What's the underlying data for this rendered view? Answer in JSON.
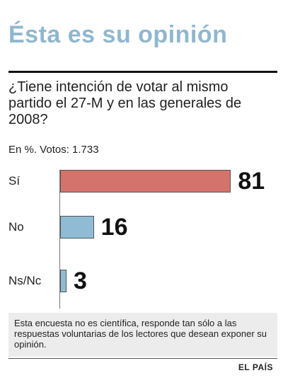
{
  "title": "Ésta es su opinión",
  "question": "¿Tiene intención de votar al mismo partido el 27-M y en las generales de 2008?",
  "subtitle": "En %. Votos: 1.733",
  "chart_data": {
    "type": "bar",
    "orientation": "horizontal",
    "categories": [
      "Sí",
      "No",
      "Ns/Nc"
    ],
    "values": [
      81,
      16,
      3
    ],
    "value_labels": [
      "81",
      "16",
      "3"
    ],
    "colors": [
      "#d4736b",
      "#8fbcd4",
      "#8fbcd4"
    ],
    "xlim": [
      0,
      100
    ],
    "grid": false,
    "unit": "%"
  },
  "note": "Esta encuesta no es científica, responde tan sólo a las respuestas voluntarias de los lectores que desean exponer su opinión.",
  "source": "EL PAÍS"
}
